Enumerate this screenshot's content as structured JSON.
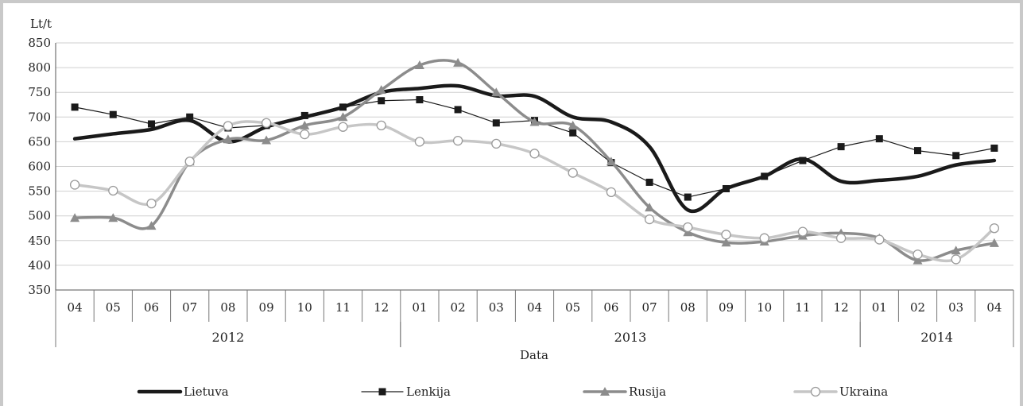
{
  "chart_data": {
    "type": "line",
    "ylabel": "Lt/t",
    "xlabel": "Data",
    "ylim": [
      350,
      850
    ],
    "yticks": [
      350,
      400,
      450,
      500,
      550,
      600,
      650,
      700,
      750,
      800,
      850
    ],
    "grid": true,
    "legend_position": "bottom",
    "categories": [
      "04",
      "05",
      "06",
      "07",
      "08",
      "09",
      "10",
      "11",
      "12",
      "01",
      "02",
      "03",
      "04",
      "05",
      "06",
      "07",
      "08",
      "09",
      "10",
      "11",
      "12",
      "01",
      "02",
      "03",
      "04"
    ],
    "years": [
      {
        "label": "2012",
        "start": 0,
        "count": 9
      },
      {
        "label": "2013",
        "start": 9,
        "count": 12
      },
      {
        "label": "2014",
        "start": 21,
        "count": 4
      }
    ],
    "series": [
      {
        "name": "Lietuva",
        "values": [
          656,
          666,
          675,
          693,
          650,
          680,
          700,
          720,
          750,
          758,
          763,
          743,
          742,
          700,
          690,
          640,
          512,
          555,
          580,
          615,
          570,
          572,
          580,
          603,
          612
        ]
      },
      {
        "name": "Lenkija",
        "values": [
          720,
          705,
          686,
          700,
          678,
          683,
          703,
          720,
          733,
          735,
          715,
          688,
          693,
          668,
          608,
          568,
          538,
          555,
          580,
          612,
          640,
          656,
          632,
          622,
          637
        ]
      },
      {
        "name": "Rusija",
        "values": [
          496,
          496,
          480,
          610,
          655,
          653,
          683,
          700,
          755,
          805,
          810,
          750,
          690,
          683,
          610,
          517,
          467,
          446,
          448,
          460,
          465,
          455,
          410,
          430,
          445
        ]
      },
      {
        "name": "Ukraina",
        "values": [
          563,
          551,
          525,
          610,
          682,
          688,
          665,
          680,
          683,
          650,
          652,
          646,
          626,
          587,
          548,
          493,
          477,
          462,
          455,
          468,
          455,
          452,
          422,
          412,
          475
        ]
      }
    ],
    "styles": {
      "Lietuva": {
        "color": "#1a1a1a",
        "width": 4.5,
        "marker": "none"
      },
      "Lenkija": {
        "color": "#1a1a1a",
        "width": 1.2,
        "marker": "square"
      },
      "Rusija": {
        "color": "#8c8c8c",
        "width": 3.5,
        "marker": "triangle"
      },
      "Ukraina": {
        "color": "#c6c6c6",
        "width": 3.5,
        "marker": "circle"
      }
    }
  }
}
